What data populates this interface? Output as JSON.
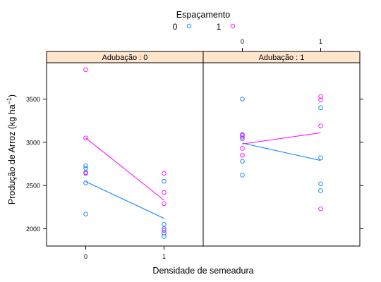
{
  "chart_data": {
    "type": "scatter",
    "legend": {
      "title": "Espaçamento",
      "placement": "top",
      "entries": [
        {
          "label": "0",
          "color": "#0080ff"
        },
        {
          "label": "1",
          "color": "#ff00ff"
        }
      ]
    },
    "xlabel": "Densidade de semeadura",
    "ylabel": "Produção de Arroz (kg ha",
    "ylabel_sup": "−1",
    "ylabel_close": ")",
    "xticks": [
      0,
      1
    ],
    "yticks": [
      2000,
      2500,
      3000,
      3500
    ],
    "xlim": [
      -0.5,
      1.5
    ],
    "ylim": [
      1800,
      3920
    ],
    "strip_color": "#ffe5cc",
    "panels": [
      {
        "strip": "Adubação : 0",
        "series": [
          {
            "name": "0",
            "color": "#0080ff",
            "points": [
              [
                0,
                2170
              ],
              [
                0,
                2530
              ],
              [
                0,
                2640
              ],
              [
                0,
                2700
              ],
              [
                0,
                2730
              ],
              [
                1,
                1910
              ],
              [
                1,
                1950
              ],
              [
                1,
                2000
              ],
              [
                1,
                2050
              ],
              [
                1,
                2550
              ]
            ],
            "mean_line": [
              [
                0,
                2545
              ],
              [
                1,
                2120
              ]
            ]
          },
          {
            "name": "1",
            "color": "#ff00ff",
            "points": [
              [
                0,
                2650
              ],
              [
                0,
                2650
              ],
              [
                0,
                3050
              ],
              [
                0,
                3840
              ],
              [
                1,
                1980
              ],
              [
                1,
                2290
              ],
              [
                1,
                2420
              ],
              [
                1,
                2640
              ]
            ],
            "mean_line": [
              [
                0,
                3050
              ],
              [
                1,
                2330
              ]
            ]
          }
        ]
      },
      {
        "strip": "Adubação : 1",
        "series": [
          {
            "name": "0",
            "color": "#0080ff",
            "points": [
              [
                0,
                2620
              ],
              [
                0,
                2780
              ],
              [
                0,
                3040
              ],
              [
                0,
                3090
              ],
              [
                0,
                3500
              ],
              [
                1,
                2440
              ],
              [
                1,
                2520
              ],
              [
                1,
                2820
              ],
              [
                1,
                3400
              ]
            ],
            "mean_line": [
              [
                0,
                2990
              ],
              [
                1,
                2790
              ]
            ]
          },
          {
            "name": "1",
            "color": "#ff00ff",
            "points": [
              [
                0,
                2850
              ],
              [
                0,
                2930
              ],
              [
                0,
                3060
              ],
              [
                0,
                3080
              ],
              [
                1,
                2230
              ],
              [
                1,
                3190
              ],
              [
                1,
                3490
              ],
              [
                1,
                3530
              ]
            ],
            "mean_line": [
              [
                0,
                2980
              ],
              [
                1,
                3110
              ]
            ]
          }
        ]
      }
    ]
  }
}
